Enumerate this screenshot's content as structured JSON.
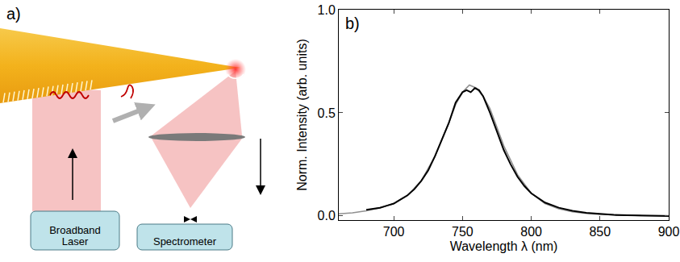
{
  "diagram": {
    "label": "a)",
    "boxes": [
      "Broadband Laser",
      "Spectrometer"
    ]
  },
  "chart_data": {
    "type": "line",
    "panel_label": "b)",
    "x_label": "Wavelength λ (nm)",
    "y_label": "Norm. Intensity (arb. units)",
    "xlim": [
      660,
      900
    ],
    "xticks": [
      700,
      750,
      800,
      850,
      900
    ],
    "ylim": [
      -0.02,
      1.0
    ],
    "yticks": [
      {
        "value": 0,
        "label": "0.0"
      },
      {
        "value": 0.5,
        "label": "0.5"
      },
      {
        "value": 1.0,
        "label": "1.0"
      }
    ],
    "grid": false,
    "series": [
      {
        "color": "#909090",
        "x": [
          660,
          670,
          680,
          690,
          700,
          710,
          720,
          730,
          740,
          745,
          750,
          755,
          760,
          765,
          770,
          775,
          780,
          790,
          800,
          810,
          820,
          830,
          840,
          850,
          860,
          880,
          900
        ],
        "values": [
          0.01,
          0.015,
          0.025,
          0.04,
          0.06,
          0.1,
          0.17,
          0.29,
          0.45,
          0.54,
          0.6,
          0.635,
          0.62,
          0.58,
          0.52,
          0.43,
          0.34,
          0.2,
          0.11,
          0.06,
          0.035,
          0.02,
          0.012,
          0.008,
          0.005,
          0.002,
          0.001
        ]
      },
      {
        "color": "#000000",
        "x": [
          680,
          685,
          690,
          695,
          700,
          705,
          710,
          715,
          720,
          725,
          730,
          735,
          740,
          745,
          750,
          753,
          756,
          759,
          762,
          765,
          770,
          775,
          780,
          785,
          790,
          795,
          800,
          810,
          820,
          830,
          840,
          850,
          860,
          870,
          880,
          890,
          900
        ],
        "values": [
          0.03,
          0.035,
          0.04,
          0.05,
          0.06,
          0.08,
          0.1,
          0.13,
          0.17,
          0.22,
          0.29,
          0.37,
          0.45,
          0.55,
          0.6,
          0.61,
          0.6,
          0.62,
          0.61,
          0.58,
          0.5,
          0.41,
          0.32,
          0.25,
          0.19,
          0.145,
          0.11,
          0.065,
          0.04,
          0.025,
          0.015,
          0.01,
          0.005,
          0.003,
          0.002,
          0.001,
          0.0
        ]
      }
    ]
  }
}
